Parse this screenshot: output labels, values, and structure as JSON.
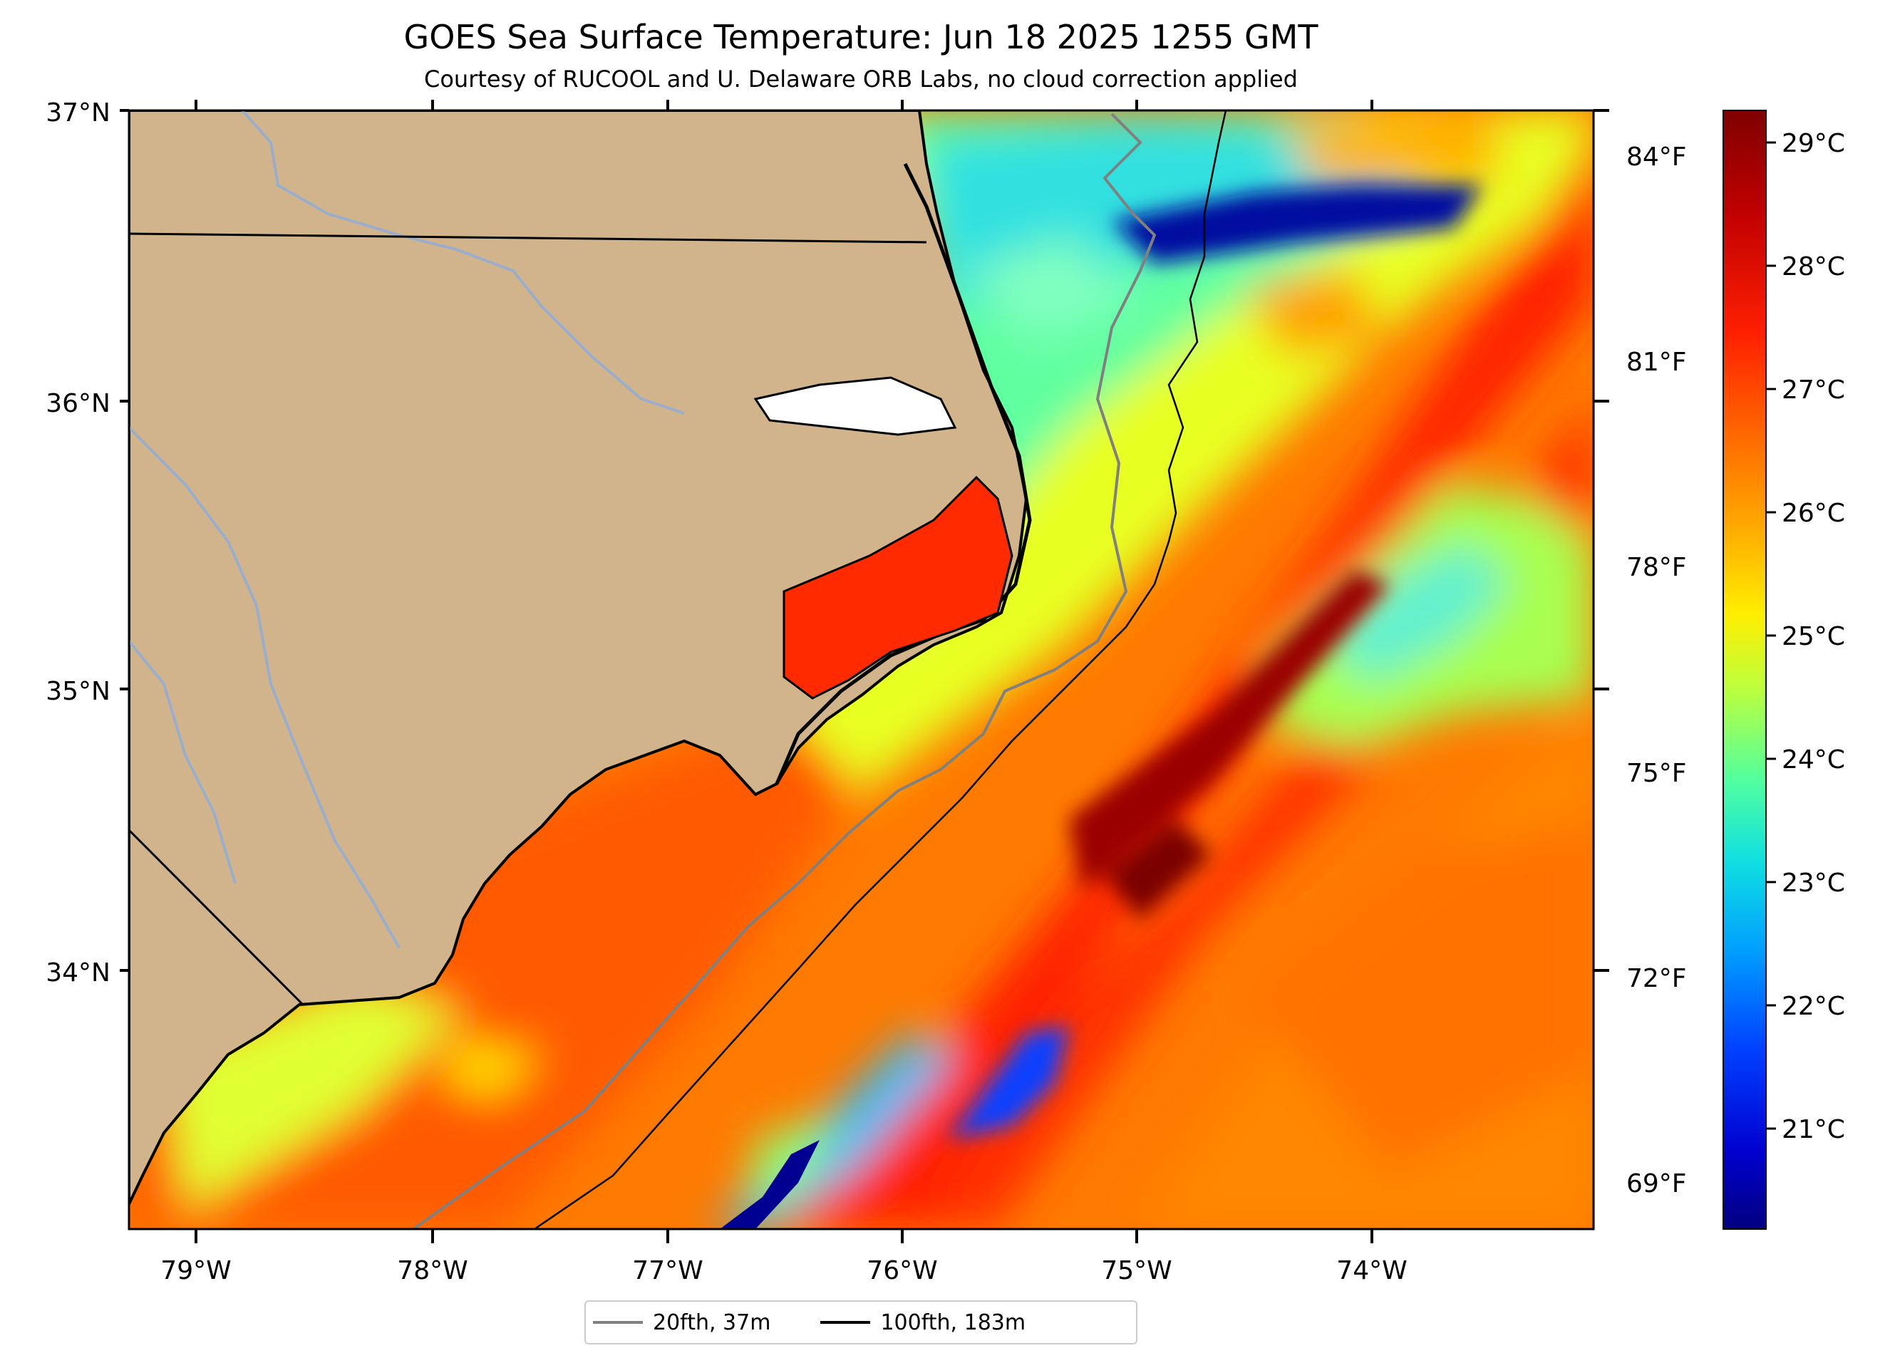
{
  "title": "GOES Sea Surface Temperature: Jun 18 2025 1255 GMT",
  "subtitle": "Courtesy of RUCOOL and U. Delaware ORB Labs, no cloud correction applied",
  "axes": {
    "lat_labels": [
      "37°N",
      "36°N",
      "35°N",
      "34°N"
    ],
    "lon_labels": [
      "79°W",
      "78°W",
      "77°W",
      "76°W",
      "75°W",
      "74°W"
    ],
    "fahrenheit_labels": [
      "84°F",
      "81°F",
      "78°F",
      "75°F",
      "72°F",
      "69°F"
    ]
  },
  "colorbar": {
    "labels": [
      "29°C",
      "28°C",
      "27°C",
      "26°C",
      "25°C",
      "24°C",
      "23°C",
      "22°C",
      "21°C"
    ],
    "colors": [
      "#7f0000",
      "#d00000",
      "#ff4a00",
      "#ff9000",
      "#ffd400",
      "#c8ff30",
      "#6cff8c",
      "#20e8d8",
      "#00b0ff",
      "#0060ff",
      "#0000e0",
      "#000080"
    ]
  },
  "legend": [
    {
      "label": "20fth, 37m",
      "color": "#808080"
    },
    {
      "label": "100fth, 183m",
      "color": "#000000"
    }
  ],
  "colors": {
    "land": "#d2b48c",
    "coastline": "#000000",
    "rivers": "#9aaecb",
    "isobath_20fth": "#808080",
    "isobath_100fth": "#000000"
  }
}
